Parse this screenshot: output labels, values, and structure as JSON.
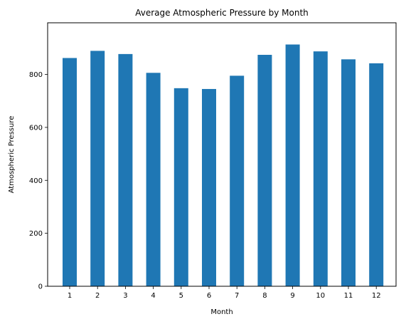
{
  "chart_data": {
    "type": "bar",
    "title": "Average Atmospheric Pressure by Month",
    "xlabel": "Month",
    "ylabel": "Atmospheric Pressure",
    "categories": [
      "1",
      "2",
      "3",
      "4",
      "5",
      "6",
      "7",
      "8",
      "9",
      "10",
      "11",
      "12"
    ],
    "values": [
      862,
      889,
      877,
      806,
      748,
      745,
      795,
      874,
      913,
      887,
      857,
      842
    ],
    "ylim": [
      0,
      995
    ],
    "yticks": [
      0,
      200,
      400,
      600,
      800
    ],
    "ytick_labels": [
      "0",
      "200",
      "400",
      "600",
      "800"
    ],
    "grid": false,
    "bar_color": "#1f77b4",
    "axis_color": "#000000",
    "background": "#ffffff"
  }
}
